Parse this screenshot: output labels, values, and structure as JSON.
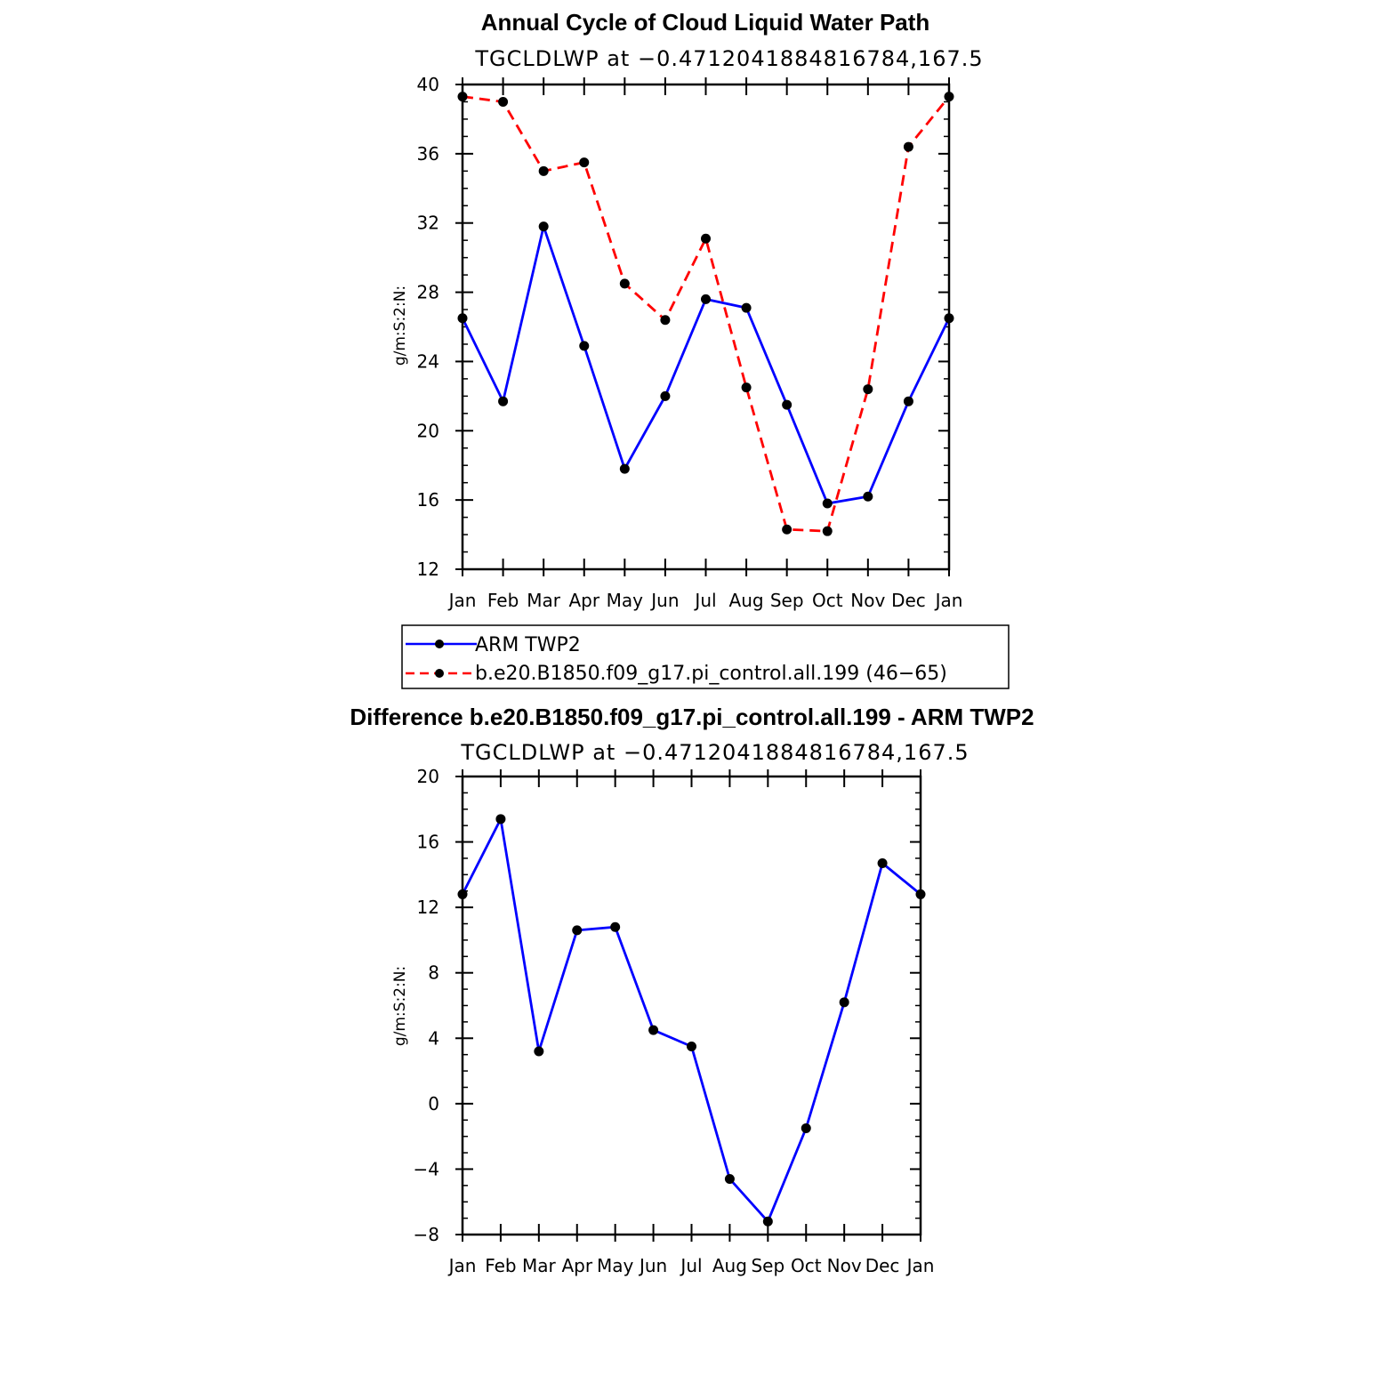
{
  "chart_data": [
    {
      "type": "line",
      "title": "Annual Cycle of Cloud Liquid Water Path",
      "subtitle": "TGCLDLWP at −0.4712041884816784,167.5",
      "ylabel": "g/m:S:2:N:",
      "ylim": [
        12,
        40
      ],
      "yticks": [
        "12",
        "16",
        "20",
        "24",
        "28",
        "32",
        "36",
        "40"
      ],
      "categories": [
        "Jan",
        "Feb",
        "Mar",
        "Apr",
        "May",
        "Jun",
        "Jul",
        "Aug",
        "Sep",
        "Oct",
        "Nov",
        "Dec",
        "Jan"
      ],
      "series": [
        {
          "name": "ARM TWP2",
          "color": "#0000ff",
          "dash": "solid",
          "values": [
            26.5,
            21.7,
            31.8,
            24.9,
            17.8,
            22.0,
            27.6,
            27.1,
            21.5,
            15.8,
            16.2,
            21.7,
            26.5
          ]
        },
        {
          "name": "b.e20.B1850.f09_g17.pi_control.all.199 (46−65)",
          "color": "#ff0000",
          "dash": "dashed",
          "values": [
            39.3,
            39.0,
            35.0,
            35.5,
            28.5,
            26.4,
            31.1,
            22.5,
            14.3,
            14.2,
            22.4,
            36.4,
            39.3
          ]
        }
      ],
      "legend": "below"
    },
    {
      "type": "line",
      "title": "Difference b.e20.B1850.f09_g17.pi_control.all.199 - ARM TWP2",
      "subtitle": "TGCLDLWP at −0.4712041884816784,167.5",
      "ylabel": "g/m:S:2:N:",
      "ylim": [
        -8,
        20
      ],
      "yticks": [
        "−8",
        "−4",
        "0",
        "4",
        "8",
        "12",
        "16",
        "20"
      ],
      "categories": [
        "Jan",
        "Feb",
        "Mar",
        "Apr",
        "May",
        "Jun",
        "Jul",
        "Aug",
        "Sep",
        "Oct",
        "Nov",
        "Dec",
        "Jan"
      ],
      "series": [
        {
          "color": "#0000ff",
          "dash": "solid",
          "values": [
            12.8,
            17.4,
            3.2,
            10.6,
            10.8,
            4.5,
            3.5,
            -4.6,
            -7.2,
            -1.5,
            6.2,
            14.7,
            12.8
          ]
        }
      ]
    }
  ]
}
